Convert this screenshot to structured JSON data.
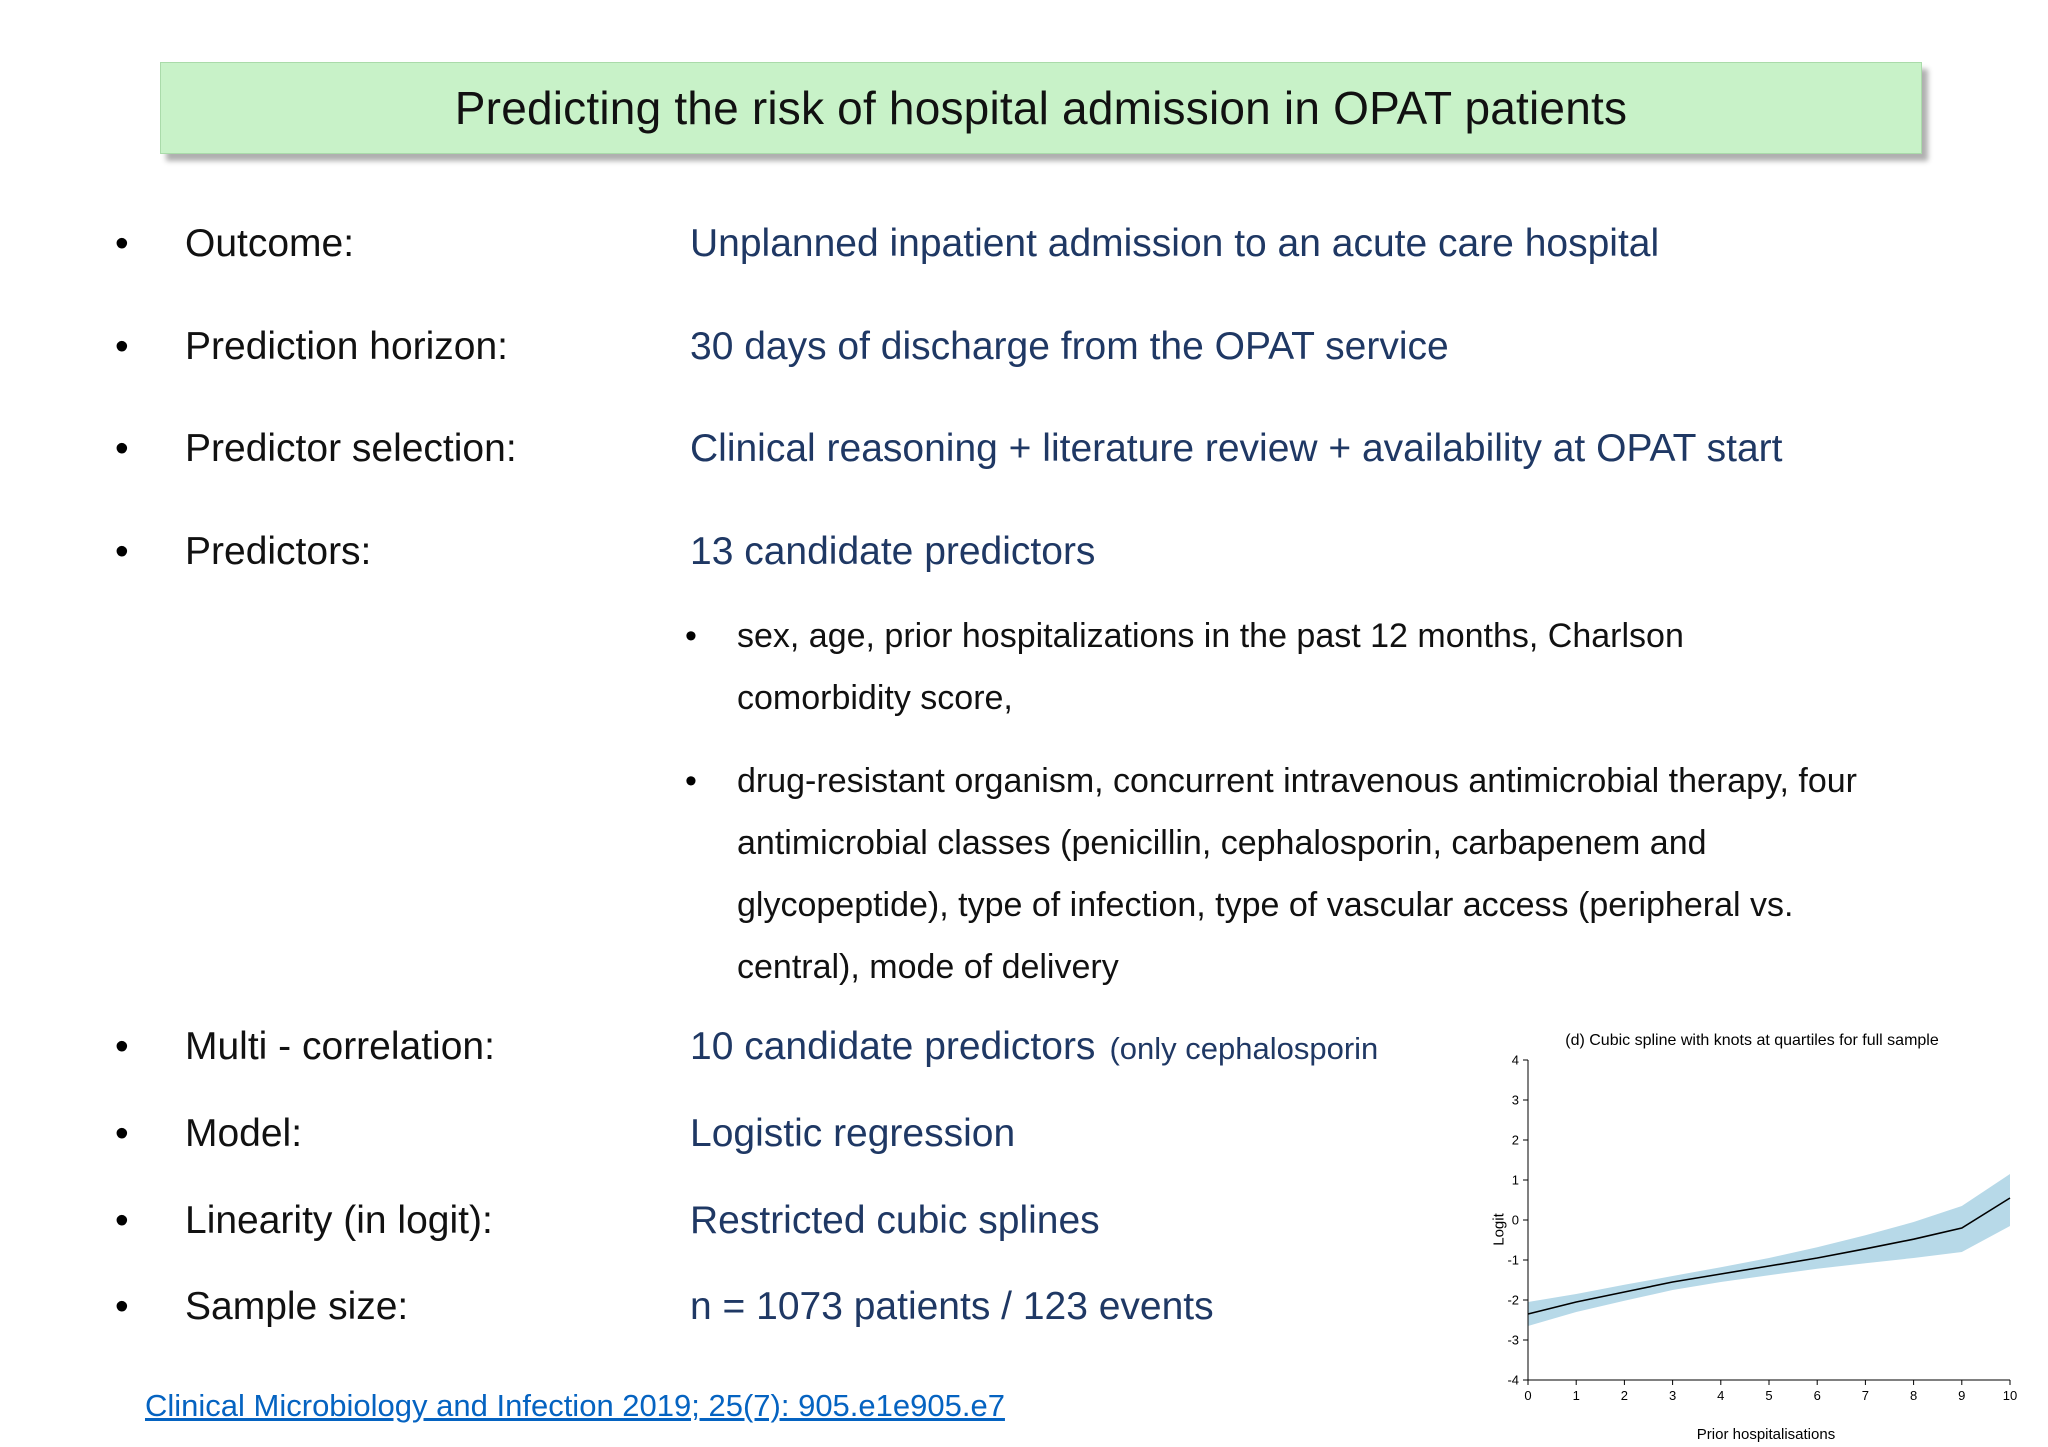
{
  "slide": {
    "title": "Predicting the risk of hospital admission in OPAT patients",
    "marker": "•",
    "bullets": [
      {
        "label": "Outcome:",
        "value": "Unplanned inpatient admission to an acute care hospital"
      },
      {
        "label": "Prediction horizon:",
        "value": "30 days of discharge from the OPAT service"
      },
      {
        "label": "Predictor selection:",
        "value": "Clinical reasoning + literature review + availability at OPAT start"
      },
      {
        "label": "Predictors:",
        "value": "13 candidate predictors"
      },
      {
        "label": "Multi - correlation:",
        "value": "10 candidate predictors",
        "note": "(only cephalosporin"
      },
      {
        "label": "Model:",
        "value": "Logistic regression"
      },
      {
        "label": "Linearity (in logit):",
        "value": "Restricted cubic splines"
      },
      {
        "label": "Sample size:",
        "value": "n = 1073 patients / 123 events"
      }
    ],
    "predictor_details": [
      "sex, age, prior hospitalizations in the past 12 months,  Charlson comorbidity score,",
      "drug-resistant organism, concurrent intravenous antimicrobial therapy, four antimicrobial classes (penicillin, cephalosporin, carbapenem and glycopeptide), type of infection, type of vascular access (peripheral vs. central), mode of delivery"
    ],
    "citation": "Clinical Microbiology and Infection 2019; 25(7): 905.e1e905.e7",
    "colors": {
      "title_bg": "#c8f2c8",
      "label_text": "#111111",
      "value_text": "#1f3864",
      "link": "#0563c1"
    }
  },
  "chart_data": {
    "type": "line",
    "title": "(d) Cubic spline with knots at quartiles for full sample",
    "xlabel": "Prior hospitalisations",
    "ylabel": "Logit",
    "xlim": [
      0,
      10
    ],
    "ylim": [
      -4,
      4
    ],
    "x_ticks": [
      0,
      1,
      2,
      3,
      4,
      5,
      6,
      7,
      8,
      9,
      10
    ],
    "y_ticks": [
      -4,
      -3,
      -2,
      -1,
      0,
      1,
      2,
      3,
      4
    ],
    "x": [
      0,
      1,
      2,
      3,
      4,
      5,
      6,
      7,
      8,
      9,
      10
    ],
    "series": [
      {
        "name": "spline estimate",
        "values": [
          -2.35,
          -2.05,
          -1.8,
          -1.55,
          -1.35,
          -1.15,
          -0.95,
          -0.72,
          -0.48,
          -0.2,
          0.55
        ]
      },
      {
        "name": "ci upper",
        "values": [
          -2.05,
          -1.85,
          -1.62,
          -1.4,
          -1.18,
          -0.95,
          -0.68,
          -0.38,
          -0.05,
          0.35,
          1.15
        ]
      },
      {
        "name": "ci lower",
        "values": [
          -2.65,
          -2.3,
          -2.02,
          -1.75,
          -1.55,
          -1.38,
          -1.22,
          -1.08,
          -0.95,
          -0.8,
          -0.15
        ]
      }
    ],
    "band_color": "#b7d9e8",
    "line_color": "#000000",
    "grid": false,
    "legend": false
  }
}
